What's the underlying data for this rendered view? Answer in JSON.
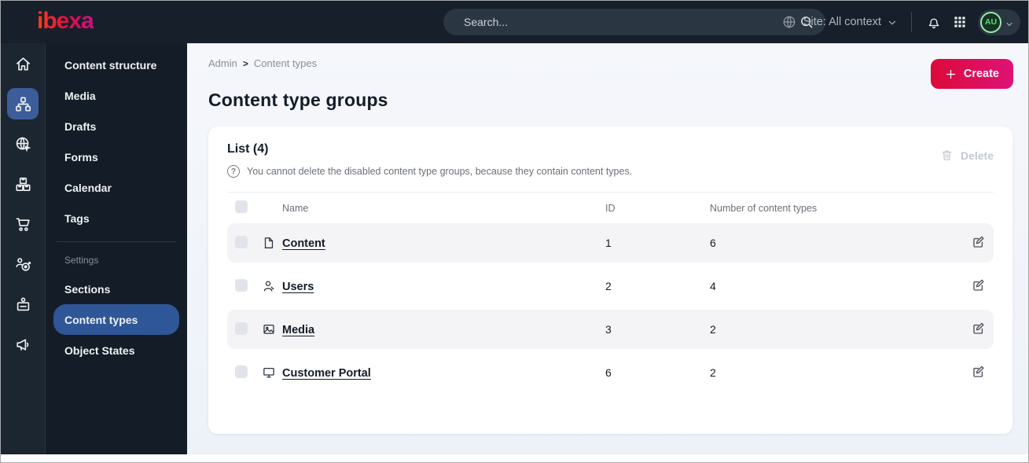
{
  "topbar": {
    "logo_text": "ibexa",
    "search_placeholder": "Search...",
    "site_selector_label": "Site: All context",
    "avatar_initials": "AU"
  },
  "rail": {
    "items": [
      {
        "icon": "home-icon",
        "active": false
      },
      {
        "icon": "content-structure-icon",
        "active": true
      },
      {
        "icon": "site-globe-icon",
        "active": false
      },
      {
        "icon": "product-catalog-icon",
        "active": false
      },
      {
        "icon": "commerce-cart-icon",
        "active": false
      },
      {
        "icon": "personalization-target-icon",
        "active": false
      },
      {
        "icon": "corporate-badge-icon",
        "active": false
      },
      {
        "icon": "promotions-megaphone-icon",
        "active": false
      }
    ]
  },
  "sidebar": {
    "main_items": [
      "Content structure",
      "Media",
      "Drafts",
      "Forms",
      "Calendar",
      "Tags"
    ],
    "section_label": "Settings",
    "settings_items": [
      "Sections",
      "Content types",
      "Object States"
    ],
    "active_item": "Content types"
  },
  "breadcrumb": {
    "items": [
      "Admin",
      "Content types"
    ],
    "separator": ">"
  },
  "page": {
    "title": "Content type groups",
    "create_label": "Create"
  },
  "card": {
    "list_title": "List (4)",
    "help_text": "You cannot delete the disabled content type groups, because they contain content types.",
    "delete_label": "Delete"
  },
  "table": {
    "columns": [
      "Name",
      "ID",
      "Number of content types"
    ],
    "rows": [
      {
        "icon": "content-file-icon",
        "name": "Content",
        "id": "1",
        "count": "6"
      },
      {
        "icon": "users-person-icon",
        "name": "Users",
        "id": "2",
        "count": "4"
      },
      {
        "icon": "media-image-icon",
        "name": "Media",
        "id": "3",
        "count": "2"
      },
      {
        "icon": "portal-monitor-icon",
        "name": "Customer Portal",
        "id": "6",
        "count": "2"
      }
    ]
  },
  "colors": {
    "topbar_bg": "#161f2a",
    "sidebar_bg": "#141d27",
    "active_blue": "#3c5c9a",
    "menu_active_blue": "#2f5697",
    "brand_gradient_start": "#dc0a3a",
    "brand_gradient_end": "#df1277",
    "avatar_green": "#54df6d",
    "main_bg": "#f1f4fa",
    "row_alt_bg": "#f4f4f7",
    "text_dark": "#131c26"
  }
}
